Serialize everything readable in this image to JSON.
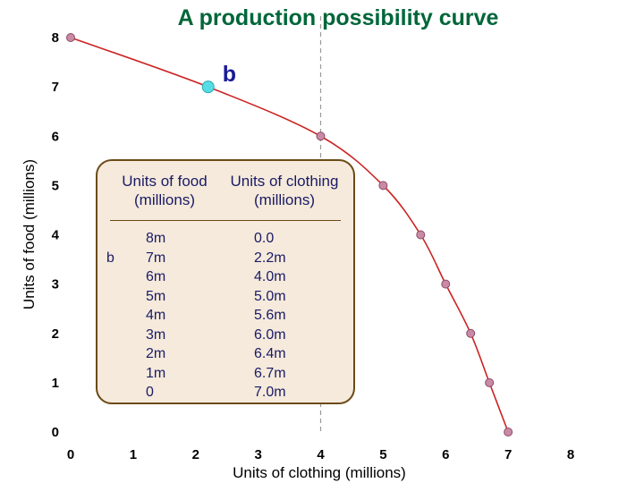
{
  "chart_data": {
    "type": "line",
    "title": "A production possibility curve",
    "xlabel": "Units of clothing (millions)",
    "ylabel": "Units of food (millions)",
    "xlim": [
      0,
      8
    ],
    "ylim": [
      0,
      8
    ],
    "x_ticks": [
      "0",
      "1",
      "2",
      "3",
      "4",
      "5",
      "6",
      "7",
      "8"
    ],
    "y_ticks": [
      "0",
      "1",
      "2",
      "3",
      "4",
      "5",
      "6",
      "7",
      "8"
    ],
    "grid": false,
    "series": [
      {
        "x": [
          0.0,
          2.2,
          4.0,
          5.0,
          5.6,
          6.0,
          6.4,
          6.7,
          7.0
        ],
        "y": [
          8,
          7,
          6,
          5,
          4,
          3,
          2,
          1,
          0
        ],
        "color": "#cc2222",
        "marker_color": "#c98aa6"
      }
    ],
    "highlight": {
      "label": "b",
      "x": 2.2,
      "y": 7,
      "color": "#55dde6",
      "label_color": "#1a1a99"
    },
    "reference_line": {
      "x": 4,
      "style": "dashed",
      "color": "#999999"
    },
    "table": {
      "header_food": "Units of food\n(millions)",
      "header_clothing": "Units of clothing\n(millions)",
      "food": [
        "8m",
        "7m",
        "6m",
        "5m",
        "4m",
        "3m",
        "2m",
        "1m",
        "0"
      ],
      "clothing": [
        "0.0",
        "2.2m",
        "4.0m",
        "5.0m",
        "5.6m",
        "6.0m",
        "6.4m",
        "6.7m",
        "7.0m"
      ],
      "row_marker": "b",
      "row_marker_index": 1
    }
  }
}
